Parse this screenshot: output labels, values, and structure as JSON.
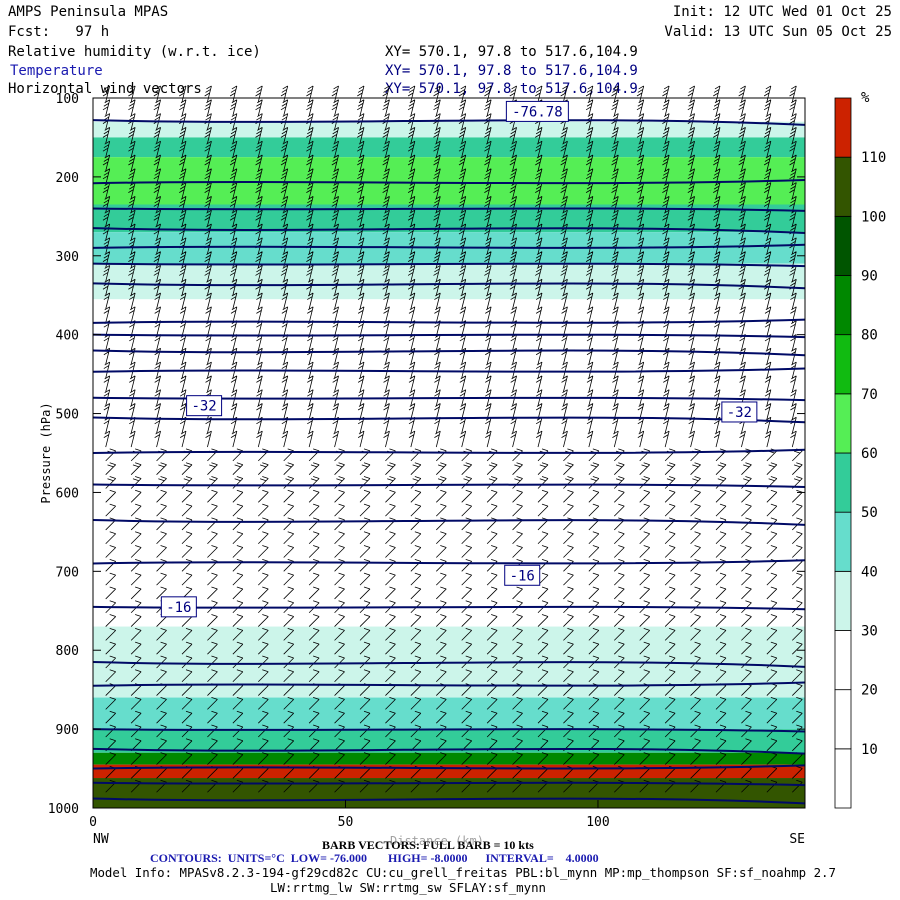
{
  "header": {
    "title": "AMPS Peninsula MPAS",
    "fcst": "Fcst:   97 h",
    "init": "Init: 12 UTC Wed 01 Oct 25",
    "valid": "Valid: 13 UTC Sun 05 Oct 25",
    "fields": [
      {
        "name": "Relative humidity (w.r.t. ice)",
        "xy": "XY= 570.1, 97.8 to 517.6,104.9"
      },
      {
        "name": "Temperature",
        "xy": "XY= 570.1, 97.8 to 517.6,104.9"
      },
      {
        "name": "Horizontal wind vectors",
        "xy": "XY= 570.1, 97.8 to 517.6,104.9"
      }
    ]
  },
  "footer": {
    "barb_note": "BARB VECTORS: FULL BARB = 10 kts",
    "xlabel_overlap": "Distance (km)",
    "contours": "CONTOURS:  UNITS=°C  LOW= -76.000       HIGH= -8.0000      INTERVAL=    4.0000",
    "model_info": "Model Info: MPASv8.2.3-194-gf29cd82c CU:cu_grell_freitas PBL:bl_mynn MP:mp_thompson SF:sf_noahmp 2.7",
    "model_info2": "LW:rrtmg_lw SW:rrtmg_sw SFLAY:sf_mynn"
  },
  "chart_data": {
    "type": "heatmap",
    "xlabel": "Distance (km)",
    "ylabel": "Pressure (hPa)",
    "xlim": [
      0,
      141
    ],
    "ylim": [
      1000,
      100
    ],
    "xticks": [
      0,
      50,
      100
    ],
    "yticks": [
      100,
      200,
      300,
      400,
      500,
      600,
      700,
      800,
      900,
      1000
    ],
    "x_end_labels": {
      "left": "NW",
      "right": "SE"
    },
    "colorbar": {
      "unit": "%",
      "levels": [
        10,
        20,
        30,
        40,
        50,
        60,
        70,
        80,
        90,
        100,
        110
      ],
      "colors": [
        "#ffffff",
        "#ffffff",
        "#ffffff",
        "#ccf5ea",
        "#66ddcc",
        "#33cc99",
        "#55ee55",
        "#11bb11",
        "#008800",
        "#005500",
        "#335500",
        "#cc2200"
      ]
    },
    "rh_bands": [
      {
        "p_top": 130,
        "p_bottom": 150,
        "color": "#ccf5ea"
      },
      {
        "p_top": 150,
        "p_bottom": 175,
        "color": "#33cc99"
      },
      {
        "p_top": 175,
        "p_bottom": 235,
        "color": "#55ee55"
      },
      {
        "p_top": 235,
        "p_bottom": 270,
        "color": "#33cc99"
      },
      {
        "p_top": 270,
        "p_bottom": 310,
        "color": "#66ddcc"
      },
      {
        "p_top": 310,
        "p_bottom": 355,
        "color": "#ccf5ea"
      },
      {
        "p_top": 770,
        "p_bottom": 860,
        "color": "#ccf5ea"
      },
      {
        "p_top": 860,
        "p_bottom": 900,
        "color": "#66ddcc"
      },
      {
        "p_top": 900,
        "p_bottom": 930,
        "color": "#33cc99"
      },
      {
        "p_top": 930,
        "p_bottom": 945,
        "color": "#008800"
      },
      {
        "p_top": 945,
        "p_bottom": 962,
        "color": "#cc2200"
      },
      {
        "p_top": 962,
        "p_bottom": 1000,
        "color": "#335500"
      }
    ],
    "contour_labels": [
      {
        "text": "-76.78",
        "x": 88,
        "p": 117
      },
      {
        "text": "-32",
        "x": 22,
        "p": 490
      },
      {
        "text": "-32",
        "x": 128,
        "p": 498
      },
      {
        "text": "-16",
        "x": 17,
        "p": 745
      },
      {
        "text": "-16",
        "x": 85,
        "p": 705
      }
    ],
    "isotherms_hPa": [
      128,
      208,
      240,
      265,
      290,
      310,
      335,
      385,
      400,
      420,
      447,
      480,
      505,
      550,
      590,
      635,
      690,
      745,
      815,
      845,
      900,
      925,
      950,
      968,
      988
    ]
  }
}
